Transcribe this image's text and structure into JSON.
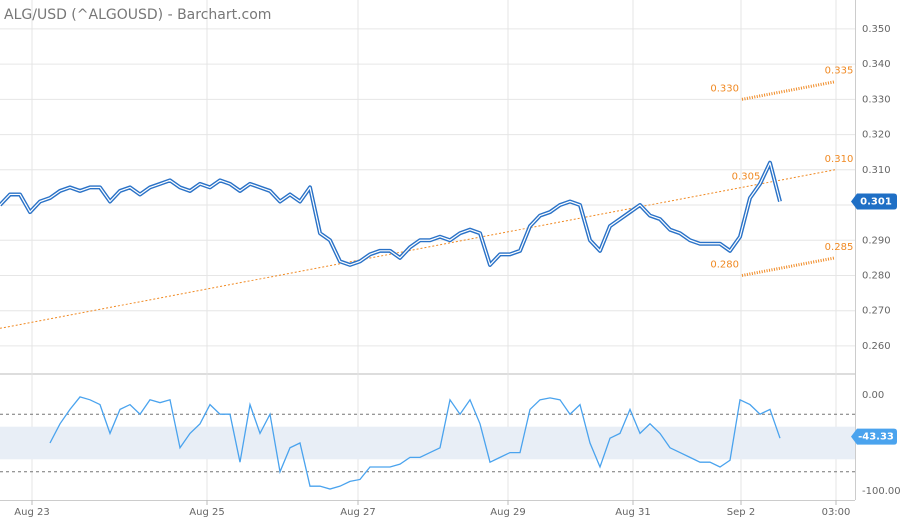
{
  "chart_data": [
    {
      "type": "line",
      "title": "ALG/USD (^ALGOUSD) - Barchart.com",
      "x": [
        0,
        1,
        2,
        3,
        4,
        5,
        6,
        7,
        8,
        9,
        10,
        11,
        12,
        13,
        14,
        15,
        16,
        17,
        18,
        19,
        20,
        21,
        22,
        23,
        24,
        25,
        26,
        27,
        28,
        29,
        30,
        31,
        32,
        33,
        34,
        35,
        36,
        37,
        38,
        39,
        40,
        41,
        42,
        43,
        44,
        45,
        46,
        47,
        48,
        49,
        50,
        51,
        52,
        53,
        54,
        55,
        56,
        57,
        58,
        59,
        60,
        61,
        62,
        63,
        64,
        65,
        66,
        67,
        68,
        69,
        70,
        71,
        72,
        73,
        74,
        75,
        76,
        77,
        78
      ],
      "xlim": [
        0,
        85.5
      ],
      "xticks": [
        {
          "value": 3.2,
          "label": "Aug 23"
        },
        {
          "value": 20.7,
          "label": "Aug 25"
        },
        {
          "value": 35.8,
          "label": "Aug 27"
        },
        {
          "value": 50.8,
          "label": "Aug 29"
        },
        {
          "value": 63.3,
          "label": "Aug 31"
        },
        {
          "value": 74.1,
          "label": "Sep 2"
        },
        {
          "value": 83.6,
          "label": "03:00"
        }
      ],
      "series": [
        {
          "color": "#2a72c7",
          "values": [
            0.3,
            0.303,
            0.303,
            0.298,
            0.301,
            0.302,
            0.304,
            0.305,
            0.304,
            0.305,
            0.305,
            0.301,
            0.304,
            0.305,
            0.303,
            0.305,
            0.306,
            0.307,
            0.305,
            0.304,
            0.306,
            0.305,
            0.307,
            0.306,
            0.304,
            0.306,
            0.305,
            0.304,
            0.301,
            0.303,
            0.301,
            0.305,
            0.292,
            0.29,
            0.284,
            0.283,
            0.284,
            0.286,
            0.287,
            0.287,
            0.285,
            0.288,
            0.29,
            0.29,
            0.291,
            0.29,
            0.292,
            0.293,
            0.292,
            0.283,
            0.286,
            0.286,
            0.287,
            0.294,
            0.297,
            0.298,
            0.3,
            0.301,
            0.3,
            0.29,
            0.287,
            0.294,
            0.296,
            0.298,
            0.3,
            0.297,
            0.296,
            0.293,
            0.292,
            0.29,
            0.289,
            0.289,
            0.289,
            0.287,
            0.291,
            0.302,
            0.306,
            0.312,
            0.301
          ]
        }
      ],
      "ylim": [
        0.2526,
        0.3582
      ],
      "yticks": [
        {
          "value": 0.35,
          "label": "0.350"
        },
        {
          "value": 0.34,
          "label": "0.340"
        },
        {
          "value": 0.33,
          "label": "0.330"
        },
        {
          "value": 0.32,
          "label": "0.320"
        },
        {
          "value": 0.31,
          "label": "0.310"
        },
        {
          "value": 0.3,
          "label": "0.300"
        },
        {
          "value": 0.29,
          "label": "0.290"
        },
        {
          "value": 0.28,
          "label": "0.280"
        },
        {
          "value": 0.27,
          "label": "0.270"
        },
        {
          "value": 0.26,
          "label": "0.260"
        }
      ],
      "grid": true,
      "last_value": 0.301,
      "last_value_color": "#1f6fc5",
      "trendlines": [
        {
          "color": "#f08a24",
          "dotted": false,
          "points": [
            {
              "x": 0,
              "y": 0.265
            },
            {
              "x": 74.2,
              "y": 0.305,
              "label": "0.305"
            },
            {
              "x": 83.5,
              "y": 0.31,
              "label": "0.310"
            }
          ]
        },
        {
          "color": "#f08a24",
          "dotted": true,
          "points": [
            {
              "x": 74.2,
              "y": 0.33,
              "label": "0.330"
            },
            {
              "x": 83.5,
              "y": 0.335,
              "label": "0.335"
            }
          ]
        },
        {
          "color": "#f08a24",
          "dotted": true,
          "points": [
            {
              "x": 74.2,
              "y": 0.28,
              "label": "0.280"
            },
            {
              "x": 83.5,
              "y": 0.285,
              "label": "0.285"
            }
          ]
        }
      ]
    },
    {
      "type": "line",
      "x": [
        0,
        1,
        2,
        3,
        4,
        5,
        6,
        7,
        8,
        9,
        10,
        11,
        12,
        13,
        14,
        15,
        16,
        17,
        18,
        19,
        20,
        21,
        22,
        23,
        24,
        25,
        26,
        27,
        28,
        29,
        30,
        31,
        32,
        33,
        34,
        35,
        36,
        37,
        38,
        39,
        40,
        41,
        42,
        43,
        44,
        45,
        46,
        47,
        48,
        49,
        50,
        51,
        52,
        53,
        54,
        55,
        56,
        57,
        58,
        59,
        60,
        61,
        62,
        63,
        64,
        65,
        66,
        67,
        68,
        69,
        70,
        71,
        72,
        73,
        74,
        75,
        76,
        77,
        78
      ],
      "xlim": [
        0,
        85.5
      ],
      "series": [
        {
          "color": "#4aa3ee",
          "values": [
            null,
            null,
            null,
            null,
            null,
            -50,
            -30,
            -15,
            -2,
            -5,
            -10,
            -40,
            -15,
            -10,
            -20,
            -5,
            -8,
            -5,
            -55,
            -40,
            -30,
            -10,
            -20,
            -20,
            -70,
            -10,
            -40,
            -20,
            -80,
            -55,
            -50,
            -95,
            -95,
            -98,
            -95,
            -90,
            -88,
            -75,
            -75,
            -75,
            -72,
            -65,
            -65,
            -60,
            -55,
            -5,
            -20,
            -5,
            -30,
            -70,
            -65,
            -60,
            -60,
            -15,
            -5,
            -3,
            -5,
            -20,
            -10,
            -50,
            -75,
            -45,
            -40,
            -15,
            -40,
            -30,
            -40,
            -55,
            -60,
            -65,
            -70,
            -70,
            -75,
            -68,
            -5,
            -10,
            -20,
            -15,
            -45
          ]
        }
      ],
      "ylim": [
        -109.4,
        19.8
      ],
      "yticks": [
        {
          "value": 0,
          "label": "0.00"
        },
        {
          "value": -100,
          "label": "-100.00"
        }
      ],
      "levels": [
        -20,
        -80
      ],
      "band": [
        -33,
        -67
      ],
      "band_color": "#e8eef6",
      "last_value": -43.33,
      "last_value_color": "#4aa3ee"
    }
  ]
}
